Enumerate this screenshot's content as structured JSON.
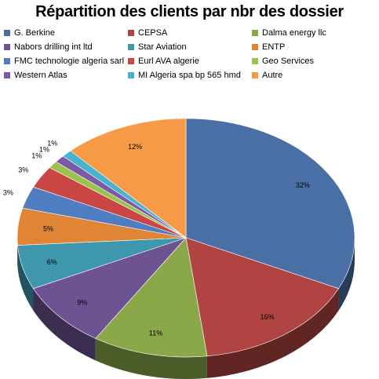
{
  "chart_data": {
    "type": "pie",
    "title": "Répartition des clients par nbr des dossier",
    "legend_position": "top",
    "three_d": true,
    "series": [
      {
        "name": "G. Berkine",
        "value": 32,
        "label": "32%",
        "color": "#4A6FA5"
      },
      {
        "name": "CEPSA",
        "value": 16,
        "label": "16%",
        "color": "#B04442"
      },
      {
        "name": "Dalma energy llc",
        "value": 11,
        "label": "11%",
        "color": "#8AA84A"
      },
      {
        "name": "Nabors drilling int ltd",
        "value": 9,
        "label": "9%",
        "color": "#6D5391"
      },
      {
        "name": "Star Aviation",
        "value": 6,
        "label": "6%",
        "color": "#3F97AE"
      },
      {
        "name": "ENTP",
        "value": 5,
        "label": "5%",
        "color": "#E08535"
      },
      {
        "name": "FMC technologie algeria sarl",
        "value": 3,
        "label": "3%",
        "color": "#4E7DC2"
      },
      {
        "name": "Eurl AVA algerie",
        "value": 3,
        "label": "3%",
        "color": "#C94644"
      },
      {
        "name": "Geo Services",
        "value": 1,
        "label": "1%",
        "color": "#9CC14C"
      },
      {
        "name": "Western Atlas",
        "value": 1,
        "label": "1%",
        "color": "#7B5AA6"
      },
      {
        "name": "MI Algeria spa bp 565 hmd",
        "value": 1,
        "label": "1%",
        "color": "#48B2CF"
      },
      {
        "name": "Autre",
        "value": 12,
        "label": "12%",
        "color": "#F79A48"
      }
    ]
  }
}
